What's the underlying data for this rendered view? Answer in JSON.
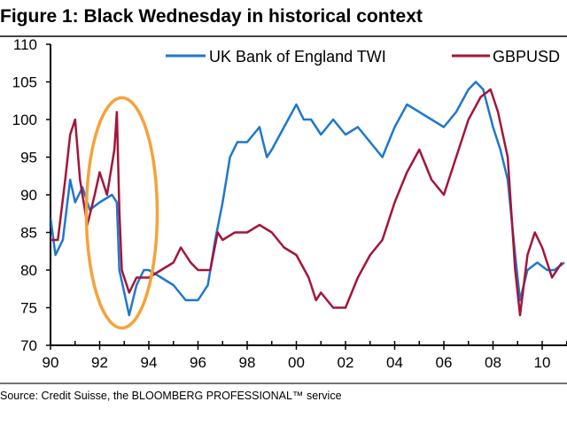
{
  "chart_data": {
    "type": "line",
    "title": "Figure 1: Black Wednesday in historical context",
    "source": "Source: Credit Suisse, the BLOOMBERG PROFESSIONAL™ service",
    "xlabel": "",
    "ylabel": "",
    "xlim": [
      1990,
      2011
    ],
    "ylim": [
      70,
      110
    ],
    "x_tick_labels": [
      "90",
      "92",
      "94",
      "96",
      "98",
      "00",
      "02",
      "04",
      "06",
      "08",
      "10"
    ],
    "y_tick_labels": [
      "70",
      "75",
      "80",
      "85",
      "90",
      "95",
      "100",
      "105",
      "110"
    ],
    "grid": false,
    "legend_position": "top",
    "annotation": {
      "shape": "ellipse",
      "color": "#F7A13A",
      "center": [
        1992.9,
        87.6
      ]
    },
    "series": [
      {
        "name": "UK Bank of England TWI",
        "color": "#1F77CC",
        "x": [
          1990.0,
          1990.2,
          1990.5,
          1990.8,
          1991.0,
          1991.3,
          1991.6,
          1992.0,
          1992.5,
          1992.7,
          1992.8,
          1993.0,
          1993.2,
          1993.5,
          1993.8,
          1994.0,
          1994.5,
          1995.0,
          1995.5,
          1996.0,
          1996.4,
          1996.7,
          1997.0,
          1997.3,
          1997.6,
          1998.0,
          1998.5,
          1998.8,
          1999.0,
          1999.5,
          2000.0,
          2000.3,
          2000.6,
          2001.0,
          2001.5,
          2002.0,
          2002.5,
          2003.0,
          2003.5,
          2004.0,
          2004.5,
          2005.0,
          2005.5,
          2006.0,
          2006.5,
          2007.0,
          2007.3,
          2007.6,
          2008.0,
          2008.3,
          2008.6,
          2008.9,
          2009.1,
          2009.4,
          2009.8,
          2010.2,
          2010.5,
          2010.9
        ],
        "y": [
          87,
          82,
          84,
          92,
          89,
          91,
          88,
          89,
          90,
          89,
          80,
          77,
          74,
          78,
          80,
          80,
          79,
          78,
          76,
          76,
          78,
          84,
          89,
          95,
          97,
          97,
          99,
          95,
          96,
          99,
          102,
          100,
          100,
          98,
          100,
          98,
          99,
          97,
          95,
          99,
          102,
          101,
          100,
          99,
          101,
          104,
          105,
          104,
          99,
          96,
          92,
          82,
          76,
          80,
          81,
          80,
          80,
          81
        ]
      },
      {
        "name": "GBPUSD",
        "color": "#A3153A",
        "x": [
          1990.0,
          1990.3,
          1990.6,
          1990.8,
          1991.0,
          1991.2,
          1991.5,
          1991.8,
          1992.0,
          1992.3,
          1992.6,
          1992.7,
          1992.8,
          1992.9,
          1993.2,
          1993.5,
          1994.0,
          1994.5,
          1995.0,
          1995.3,
          1995.7,
          1996.0,
          1996.5,
          1996.8,
          1997.0,
          1997.5,
          1998.0,
          1998.5,
          1999.0,
          1999.5,
          2000.0,
          2000.5,
          2000.8,
          2001.0,
          2001.5,
          2002.0,
          2002.5,
          2003.0,
          2003.5,
          2004.0,
          2004.5,
          2005.0,
          2005.5,
          2006.0,
          2006.5,
          2007.0,
          2007.5,
          2007.9,
          2008.2,
          2008.6,
          2008.9,
          2009.1,
          2009.4,
          2009.7,
          2010.0,
          2010.4,
          2010.8
        ],
        "y": [
          84,
          84,
          92,
          98,
          100,
          92,
          86,
          90,
          93,
          90,
          96,
          101,
          88,
          80,
          77,
          79,
          79,
          80,
          81,
          83,
          81,
          80,
          80,
          85,
          84,
          85,
          85,
          86,
          85,
          83,
          82,
          79,
          76,
          77,
          75,
          75,
          79,
          82,
          84,
          89,
          93,
          96,
          92,
          90,
          95,
          100,
          103,
          104,
          101,
          95,
          80,
          74,
          82,
          85,
          83,
          79,
          81
        ]
      }
    ]
  }
}
